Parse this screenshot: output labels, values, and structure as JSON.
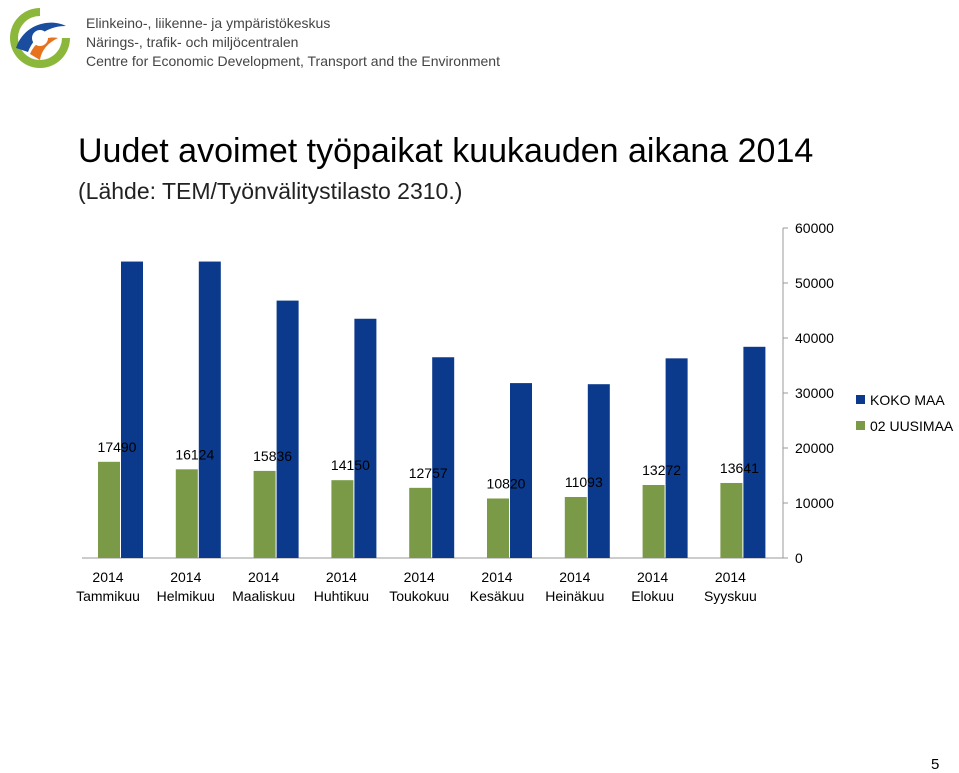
{
  "header": {
    "org_lines": [
      "Elinkeino-, liikenne- ja ympäristökeskus",
      "Närings-, trafik- och miljöcentralen",
      "Centre for Economic Development, Transport and the Environment"
    ]
  },
  "slide": {
    "title": "Uudet avoimet työpaikat kuukauden aikana 2014",
    "subtitle": "(Lähde: TEM/Työnvälitystilasto 2310.)",
    "page_number": "5"
  },
  "colors": {
    "koko_maa": "#0b3a8c",
    "uusimaa": "#7a9a47",
    "logo_green": "#8bb83a",
    "logo_blue": "#1a4d9e",
    "logo_orange": "#e8731e"
  },
  "chart_data": {
    "type": "bar",
    "categories": [
      [
        "2014",
        "Tammikuu"
      ],
      [
        "2014",
        "Helmikuu"
      ],
      [
        "2014",
        "Maaliskuu"
      ],
      [
        "2014",
        "Huhtikuu"
      ],
      [
        "2014",
        "Toukokuu"
      ],
      [
        "2014",
        "Kesäkuu"
      ],
      [
        "2014",
        "Heinäkuu"
      ],
      [
        "2014",
        "Elokuu"
      ],
      [
        "2014",
        "Syyskuu"
      ]
    ],
    "series": [
      {
        "name": "KOKO MAA",
        "values": [
          53900,
          53900,
          46800,
          43500,
          36500,
          31800,
          31600,
          36300,
          38400
        ],
        "color": "#0b3a8c"
      },
      {
        "name": "02 UUSIMAA",
        "values": [
          17490,
          16124,
          15836,
          14150,
          12757,
          10820,
          11093,
          13272,
          13641
        ],
        "color": "#7a9a47"
      }
    ],
    "data_labels": [
      "17490",
      "16124",
      "15836",
      "14150",
      "12757",
      "10820",
      "11093",
      "13272",
      "13641"
    ],
    "yticks": [
      "0",
      "10000",
      "20000",
      "30000",
      "40000",
      "50000",
      "60000"
    ],
    "ylim": [
      0,
      60000
    ],
    "y_axis_side": "right",
    "legend_position": "right",
    "grid": false,
    "title": "",
    "xlabel": "",
    "ylabel": ""
  }
}
